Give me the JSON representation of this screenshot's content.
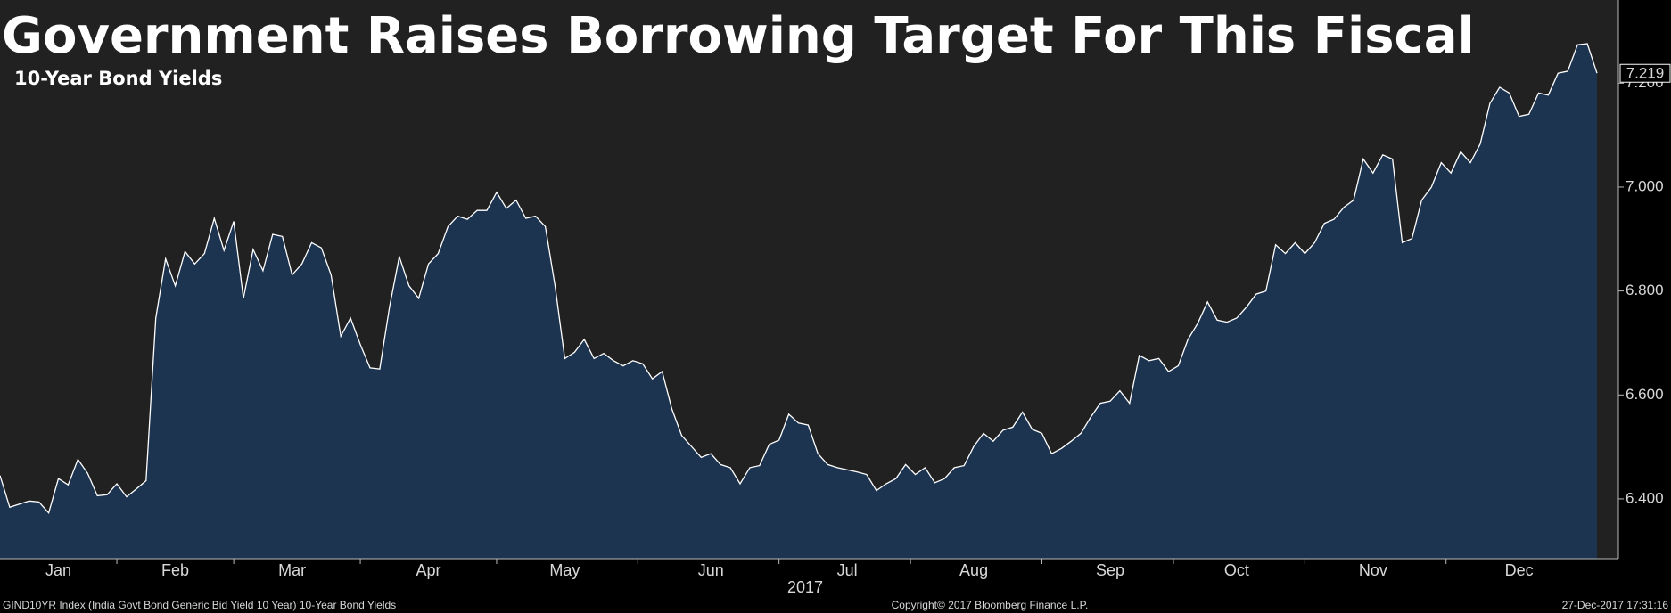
{
  "chart_data": {
    "type": "area",
    "title": "Government Raises Borrowing Target For This Fiscal",
    "subtitle": "10-Year Bond Yields",
    "xlabel": "2017",
    "source": "GIND10YR Index (India Govt Bond Generic Bid Yield 10 Year) 10-Year Bond Yields",
    "copyright": "Copyright© 2017 Bloomberg Finance L.P.",
    "timestamp": "27-Dec-2017 17:31:16",
    "color": "#1d3451",
    "line_color": "#ffffff",
    "ylim": [
      6.285,
      7.36
    ],
    "yticks": [
      {
        "value": 6.4,
        "label": "6.400"
      },
      {
        "value": 6.6,
        "label": "6.600"
      },
      {
        "value": 6.8,
        "label": "6.800"
      },
      {
        "value": 7.0,
        "label": "7.000"
      },
      {
        "value": 7.2,
        "label": "7.200"
      }
    ],
    "categories": [
      null,
      null,
      null,
      null,
      null,
      null,
      "Jan",
      null,
      null,
      null,
      null,
      null,
      null,
      null,
      null,
      null,
      null,
      null,
      "Feb",
      null,
      null,
      null,
      null,
      null,
      null,
      null,
      null,
      null,
      null,
      null,
      "Mar",
      null,
      null,
      null,
      null,
      null,
      null,
      null,
      null,
      null,
      null,
      null,
      null,
      null,
      "Apr",
      null,
      null,
      null,
      null,
      null,
      null,
      null,
      null,
      null,
      null,
      null,
      null,
      null,
      "May",
      null,
      null,
      null,
      null,
      null,
      null,
      null,
      null,
      null,
      null,
      null,
      null,
      null,
      null,
      "Jun",
      null,
      null,
      null,
      null,
      null,
      null,
      null,
      null,
      null,
      null,
      null,
      null,
      null,
      "Jul",
      null,
      null,
      null,
      null,
      null,
      null,
      null,
      null,
      null,
      null,
      null,
      null,
      "Aug",
      null,
      null,
      null,
      null,
      null,
      null,
      null,
      null,
      null,
      null,
      null,
      null,
      null,
      "Sep",
      null,
      null,
      null,
      null,
      null,
      null,
      null,
      null,
      null,
      null,
      null,
      null,
      "Oct",
      null,
      null,
      null,
      null,
      null,
      null,
      null,
      null,
      null,
      null,
      null,
      null,
      null,
      "Nov",
      null,
      null,
      null,
      null,
      null,
      null,
      null,
      null,
      null,
      null,
      null,
      null,
      null,
      null,
      "Dec",
      null,
      null,
      null,
      null,
      null,
      null,
      null,
      null
    ],
    "values": [
      6.445,
      6.384,
      6.39,
      6.396,
      6.394,
      6.373,
      6.439,
      6.427,
      6.476,
      6.449,
      6.406,
      6.408,
      6.429,
      6.404,
      6.419,
      6.435,
      6.748,
      6.862,
      6.81,
      6.876,
      6.852,
      6.872,
      6.94,
      6.878,
      6.934,
      6.786,
      6.88,
      6.839,
      6.909,
      6.905,
      6.831,
      6.852,
      6.893,
      6.883,
      6.831,
      6.713,
      6.748,
      6.697,
      6.652,
      6.65,
      6.769,
      6.866,
      6.81,
      6.786,
      6.852,
      6.872,
      6.924,
      6.944,
      6.938,
      6.955,
      6.955,
      6.99,
      6.959,
      6.975,
      6.94,
      6.944,
      6.924,
      6.81,
      6.67,
      6.682,
      6.707,
      6.67,
      6.68,
      6.666,
      6.656,
      6.666,
      6.66,
      6.631,
      6.645,
      6.573,
      6.522,
      6.501,
      6.48,
      6.487,
      6.466,
      6.46,
      6.429,
      6.46,
      6.464,
      6.505,
      6.513,
      6.563,
      6.546,
      6.542,
      6.487,
      6.466,
      6.46,
      6.456,
      6.452,
      6.447,
      6.416,
      6.429,
      6.439,
      6.466,
      6.447,
      6.46,
      6.431,
      6.439,
      6.46,
      6.464,
      6.501,
      6.526,
      6.511,
      6.532,
      6.538,
      6.567,
      6.534,
      6.526,
      6.487,
      6.497,
      6.511,
      6.526,
      6.557,
      6.584,
      6.588,
      6.608,
      6.584,
      6.676,
      6.666,
      6.67,
      6.645,
      6.656,
      6.707,
      6.738,
      6.779,
      6.744,
      6.74,
      6.748,
      6.769,
      6.794,
      6.8,
      6.889,
      6.872,
      6.893,
      6.872,
      6.893,
      6.93,
      6.938,
      6.961,
      6.975,
      7.054,
      7.027,
      7.062,
      7.054,
      6.893,
      6.901,
      6.975,
      7.0,
      7.047,
      7.027,
      7.068,
      7.047,
      7.083,
      7.161,
      7.192,
      7.181,
      7.136,
      7.14,
      7.181,
      7.177,
      7.219,
      7.223,
      7.274,
      7.276,
      7.219
    ]
  }
}
